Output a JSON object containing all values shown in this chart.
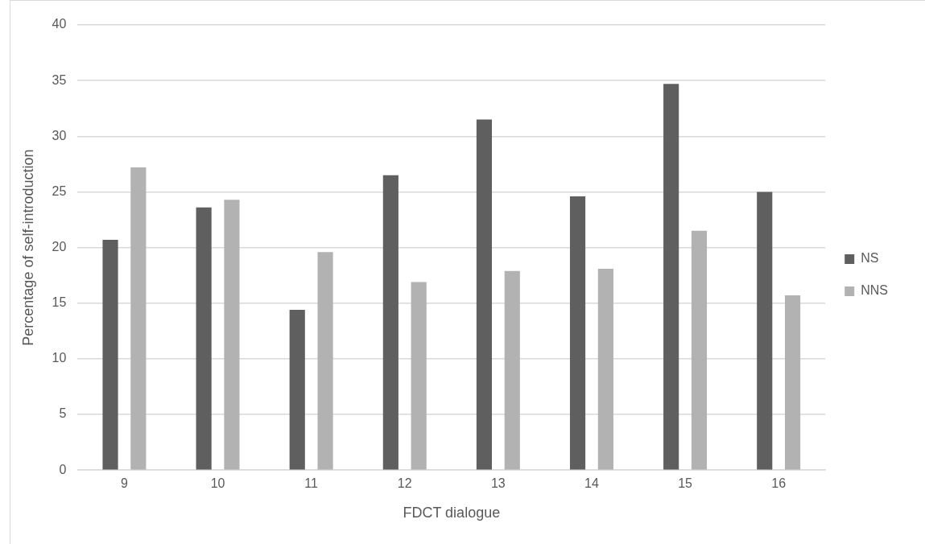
{
  "chart_data": {
    "type": "bar",
    "xlabel": "FDCT dialogue",
    "ylabel": "Percentage of self-introduction",
    "categories": [
      "9",
      "10",
      "11",
      "12",
      "13",
      "14",
      "15",
      "16"
    ],
    "series": [
      {
        "name": "NS",
        "color": "#5f5f5f",
        "values": [
          20.7,
          23.6,
          14.4,
          26.5,
          31.5,
          24.6,
          34.7,
          25.0
        ]
      },
      {
        "name": "NNS",
        "color": "#b2b2b2",
        "values": [
          27.2,
          24.3,
          19.6,
          16.9,
          17.9,
          18.1,
          21.5,
          15.7
        ]
      }
    ],
    "ylim": [
      0,
      40
    ],
    "yticks": [
      0,
      5,
      10,
      15,
      20,
      25,
      30,
      35,
      40
    ],
    "grid": "y",
    "legend": "right"
  }
}
